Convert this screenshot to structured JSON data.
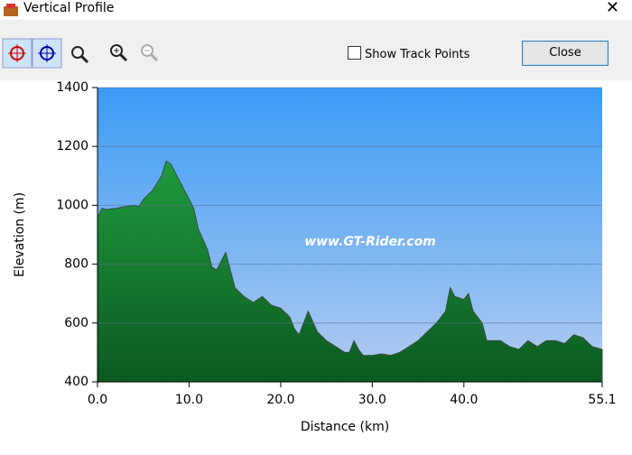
{
  "window": {
    "title": "Vertical Profile"
  },
  "toolbar": {
    "checkbox_label": "Show Track Points",
    "close_button": "Close"
  },
  "chart_data": {
    "type": "area",
    "x_label": "Distance (km)",
    "y_label": "Elevation (m)",
    "annotation": "www.GT-Rider.com",
    "x": [
      0,
      0.5,
      1,
      2,
      3,
      4,
      4.5,
      5,
      6,
      7,
      7.5,
      8,
      9,
      10,
      10.5,
      11,
      12,
      12.5,
      13,
      13.5,
      14,
      14.5,
      15,
      16,
      17,
      18,
      19,
      20,
      21,
      21.5,
      22,
      22.5,
      23,
      24,
      25,
      26,
      27,
      27.5,
      28,
      28.5,
      29,
      30,
      31,
      32,
      33,
      34,
      35,
      36,
      37,
      38,
      38.5,
      39,
      40,
      40.5,
      41,
      42,
      42.5,
      43,
      44,
      45,
      46,
      47,
      48,
      49,
      50,
      51,
      52,
      53,
      54,
      55.1
    ],
    "values": [
      960,
      990,
      985,
      990,
      995,
      1000,
      995,
      1020,
      1050,
      1100,
      1150,
      1140,
      1080,
      1020,
      990,
      920,
      850,
      790,
      780,
      810,
      840,
      780,
      720,
      690,
      670,
      690,
      660,
      650,
      620,
      580,
      560,
      600,
      640,
      570,
      540,
      520,
      500,
      500,
      540,
      510,
      490,
      490,
      495,
      490,
      500,
      520,
      540,
      570,
      600,
      640,
      720,
      690,
      680,
      700,
      640,
      600,
      540,
      540,
      540,
      520,
      510,
      540,
      520,
      540,
      540,
      530,
      560,
      550,
      520,
      510
    ],
    "color": "#1f9a3e",
    "xlim": [
      0,
      55.1
    ],
    "xticks": [
      {
        "value": 0,
        "label": "0.0"
      },
      {
        "value": 10,
        "label": "10.0"
      },
      {
        "value": 20,
        "label": "20.0"
      },
      {
        "value": 30,
        "label": "30.0"
      },
      {
        "value": 40,
        "label": "40.0"
      },
      {
        "value": 55.1,
        "label": "55.1"
      }
    ],
    "ylim": [
      400,
      1400
    ],
    "yticks": [
      400,
      600,
      800,
      1000,
      1200,
      1400
    ],
    "grid": true
  }
}
